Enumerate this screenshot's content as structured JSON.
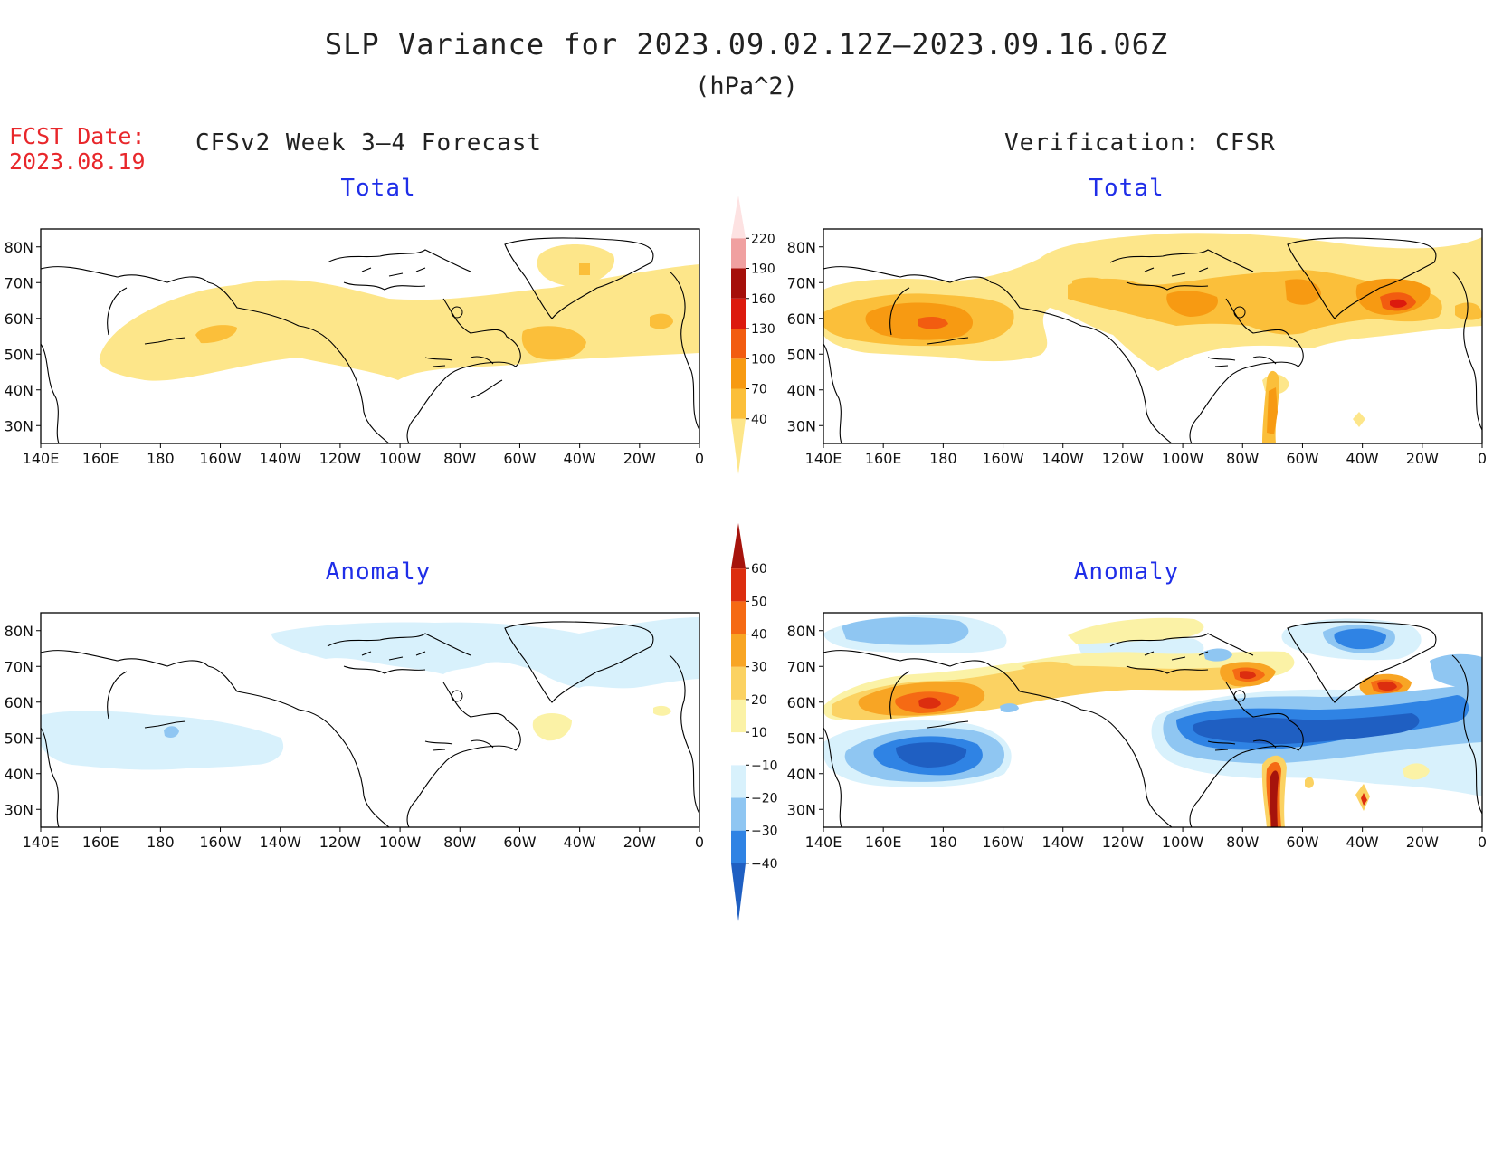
{
  "header": {
    "title": "SLP Variance for 2023.09.02.12Z—2023.09.16.06Z",
    "units": "(hPa^2)",
    "fcst_label": "FCST Date:",
    "fcst_date": "2023.08.19",
    "left_column": "CFSv2 Week 3—4 Forecast",
    "right_column": "Verification: CFSR"
  },
  "panels": {
    "forecast_total": {
      "title": "Total"
    },
    "verification_total": {
      "title": "Total"
    },
    "forecast_anomaly": {
      "title": "Anomaly"
    },
    "verification_anomaly": {
      "title": "Anomaly"
    }
  },
  "axes": {
    "lon_labels": [
      "140E",
      "160E",
      "180",
      "160W",
      "140W",
      "120W",
      "100W",
      "80W",
      "60W",
      "40W",
      "20W",
      "0"
    ],
    "lat_labels": [
      "80N",
      "70N",
      "60N",
      "50N",
      "40N",
      "30N"
    ]
  },
  "colorbars": {
    "total": {
      "levels": [
        40,
        70,
        100,
        130,
        160,
        190,
        220
      ],
      "colors": [
        "#fde68a",
        "#fbbf3a",
        "#f79a12",
        "#f25c10",
        "#dc1a0e",
        "#a50f0a",
        "#f0a0a0",
        "#fde2e2"
      ]
    },
    "anomaly": {
      "levels": [
        -40,
        -30,
        -20,
        -10,
        10,
        20,
        30,
        40,
        50,
        60
      ],
      "colors": [
        "#1f5fc2",
        "#2f83e4",
        "#8fc6f2",
        "#d8f1fc",
        "#ffffff",
        "#fbf2a6",
        "#fbd262",
        "#f8a524",
        "#f56a14",
        "#dc2e0f",
        "#a6130c"
      ]
    }
  }
}
